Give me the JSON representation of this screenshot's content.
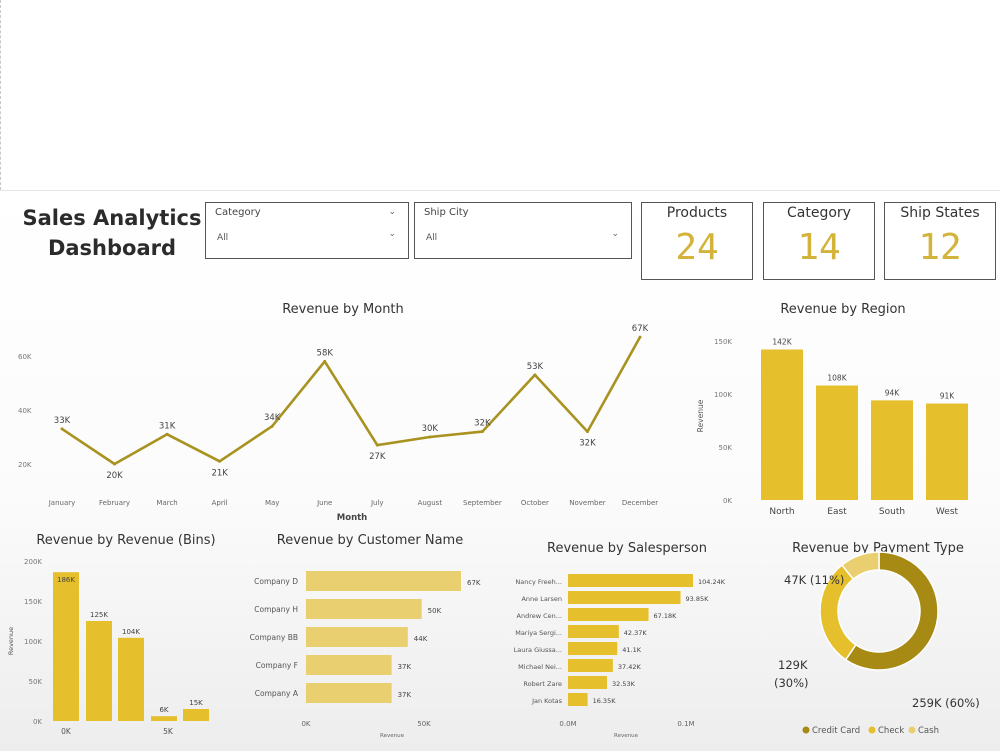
{
  "dashboard": {
    "title": "Sales Analytics Dashboard",
    "filters": [
      {
        "label": "Category",
        "value": "All"
      },
      {
        "label": "Ship City",
        "value": "All"
      }
    ],
    "cards": [
      {
        "label": "Products",
        "value": "24"
      },
      {
        "label": "Category",
        "value": "14"
      },
      {
        "label": "Ship States",
        "value": "12"
      }
    ]
  },
  "colors": {
    "gold": "#e6bf2d",
    "olive": "#a68a14",
    "line": "#a89220",
    "cash": "#e9cf6f"
  },
  "chart_data": [
    {
      "type": "line",
      "title": "Revenue by Month",
      "xlabel": "Month",
      "ylabel": "",
      "categories": [
        "January",
        "February",
        "March",
        "April",
        "May",
        "June",
        "July",
        "August",
        "September",
        "October",
        "November",
        "December"
      ],
      "values": [
        33,
        20,
        31,
        21,
        34,
        58,
        27,
        30,
        32,
        53,
        32,
        67
      ],
      "labels": [
        "33K",
        "20K",
        "31K",
        "21K",
        "34K",
        "58K",
        "27K",
        "30K",
        "32K",
        "53K",
        "32K",
        "67K"
      ],
      "yticks": [
        "20K",
        "40K",
        "60K"
      ],
      "ylim": [
        10,
        70
      ]
    },
    {
      "type": "bar",
      "title": "Revenue by Region",
      "xlabel": "",
      "ylabel": "Revenue",
      "categories": [
        "North",
        "East",
        "South",
        "West"
      ],
      "values": [
        142,
        108,
        94,
        91
      ],
      "labels": [
        "142K",
        "108K",
        "94K",
        "91K"
      ],
      "yticks": [
        "0K",
        "50K",
        "100K",
        "150K"
      ],
      "ylim": [
        0,
        150
      ]
    },
    {
      "type": "bar",
      "title": "Revenue by Revenue (Bins)",
      "xlabel": "",
      "ylabel": "Revenue",
      "values": [
        186,
        125,
        104,
        6,
        15
      ],
      "labels": [
        "186K",
        "125K",
        "104K",
        "6K",
        "15K"
      ],
      "xticks": [
        "0K",
        "5K"
      ],
      "yticks": [
        "0K",
        "50K",
        "100K",
        "150K",
        "200K"
      ],
      "ylim": [
        0,
        200
      ]
    },
    {
      "type": "bar",
      "orientation": "horizontal",
      "title": "Revenue by Customer Name",
      "xlabel": "Revenue",
      "ylabel": "",
      "categories": [
        "Company D",
        "Company H",
        "Company BB",
        "Company F",
        "Company A"
      ],
      "values": [
        67,
        50,
        44,
        37,
        37
      ],
      "labels": [
        "67K",
        "50K",
        "44K",
        "37K",
        "37K"
      ],
      "xticks": [
        "0K",
        "50K"
      ],
      "xlim": [
        0,
        80
      ]
    },
    {
      "type": "bar",
      "orientation": "horizontal",
      "title": "Revenue by Salesperson",
      "xlabel": "Revenue",
      "ylabel": "",
      "categories": [
        "Nancy Freeh...",
        "Anne Larsen",
        "Andrew Cen...",
        "Mariya Sergi...",
        "Laura Giussa...",
        "Michael Nei...",
        "Robert Zare",
        "Jan Kotas"
      ],
      "values": [
        104.24,
        93.85,
        67.18,
        42.37,
        41.1,
        37.42,
        32.53,
        16.35
      ],
      "labels": [
        "104.24K",
        "93.85K",
        "67.18K",
        "42.37K",
        "41.1K",
        "37.42K",
        "32.53K",
        "16.35K"
      ],
      "xticks": [
        "0.0M",
        "0.1M"
      ],
      "xlim": [
        0,
        110
      ]
    },
    {
      "type": "pie",
      "title": "Revenue by Payment Type",
      "categories": [
        "Credit Card",
        "Check",
        "Cash"
      ],
      "values": [
        259,
        129,
        47
      ],
      "labels": [
        "259K (60%)",
        "129K (30%)",
        "47K (11%)"
      ]
    }
  ]
}
